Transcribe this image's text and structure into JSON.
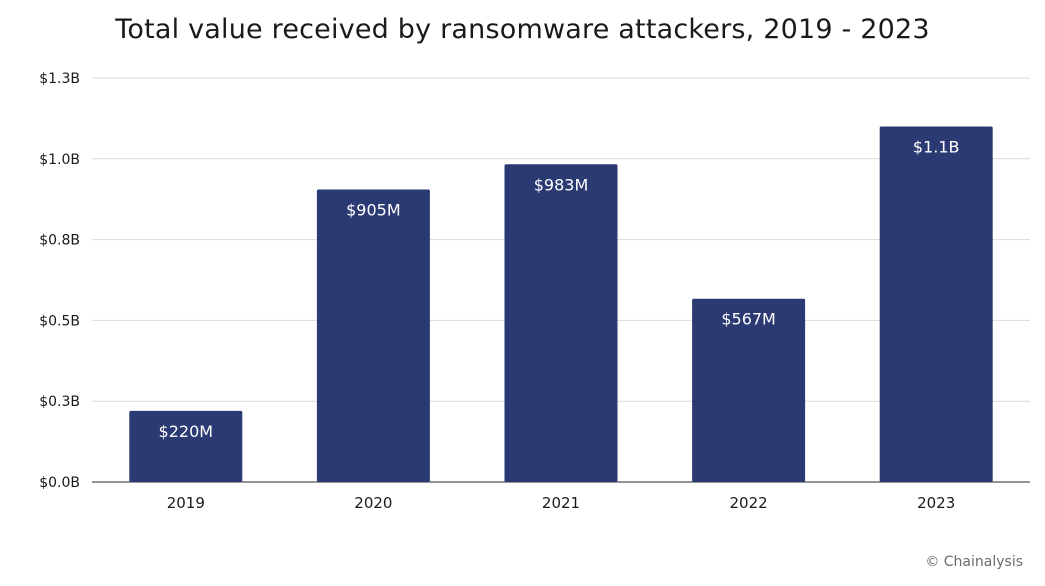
{
  "chart_data": {
    "type": "bar",
    "title": "Total value received by ransomware attackers, 2019 - 2023",
    "categories": [
      "2019",
      "2020",
      "2021",
      "2022",
      "2023"
    ],
    "values": [
      220,
      905,
      983,
      567,
      1100
    ],
    "value_unit": "millions USD",
    "data_labels": [
      "$220M",
      "$905M",
      "$983M",
      "$567M",
      "$1.1B"
    ],
    "y_ticks": [
      0,
      250,
      500,
      750,
      1000,
      1250
    ],
    "y_tick_labels": [
      "$0.0B",
      "$0.3B",
      "$0.5B",
      "$0.8B",
      "$1.0B",
      "$1.3B"
    ],
    "ylim": [
      0,
      1250
    ],
    "xlabel": "",
    "ylabel": "",
    "grid": true,
    "bar_color": "#2b3a73",
    "grid_color": "#d9d9d9"
  },
  "footer": {
    "watermark": "© Chainalysis"
  }
}
